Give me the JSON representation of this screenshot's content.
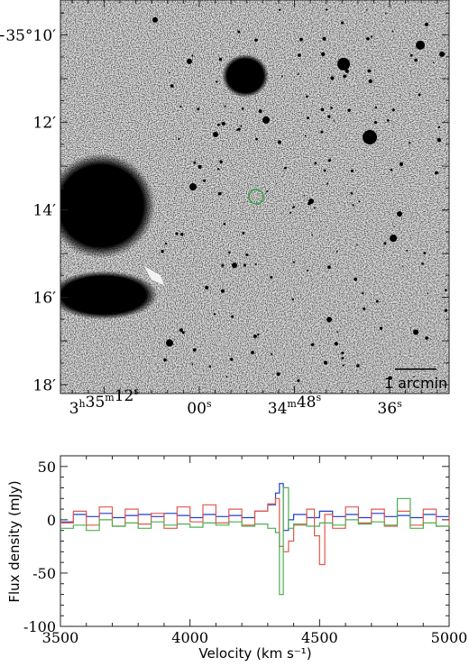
{
  "image_panel": {
    "dec_labels": [
      {
        "text": "−35°10′",
        "dec": 10
      },
      {
        "text": "12′",
        "dec": 12
      },
      {
        "text": "14′",
        "dec": 14
      },
      {
        "text": "16′",
        "dec": 16
      },
      {
        "text": "18′",
        "dec": 18
      }
    ],
    "ra_labels": [
      {
        "parts": [
          [
            "3",
            ""
          ],
          [
            "h",
            "sup"
          ],
          [
            "35",
            ""
          ],
          [
            "m",
            "sup"
          ],
          [
            "12",
            ""
          ],
          [
            "s",
            "sup"
          ]
        ],
        "ra": 12
      },
      {
        "parts": [
          [
            "00",
            ""
          ],
          [
            "s",
            "sup"
          ]
        ],
        "ra": 0
      },
      {
        "parts": [
          [
            "34",
            ""
          ],
          [
            "m",
            "sup"
          ],
          [
            "48",
            ""
          ],
          [
            "s",
            "sup"
          ]
        ],
        "ra": -12
      },
      {
        "parts": [
          [
            "36",
            ""
          ],
          [
            "s",
            "sup"
          ]
        ],
        "ra": -24
      }
    ],
    "scalebar_label": "1 arcmin",
    "marker_color": "#2e9e3a"
  },
  "chart_data": {
    "type": "line",
    "style": "step",
    "xlabel": "Velocity (km s⁻¹)",
    "ylabel": "Flux density (mJy)",
    "xlim": [
      3500,
      5000
    ],
    "ylim": [
      -100,
      60
    ],
    "xticks": [
      3500,
      4000,
      4500,
      5000
    ],
    "yticks": [
      50,
      0,
      -50,
      -100
    ],
    "series": [
      {
        "color": "#1f3fcc",
        "x": [
          3500,
          3550,
          3600,
          3650,
          3700,
          3750,
          3800,
          3850,
          3900,
          3950,
          4000,
          4050,
          4100,
          4150,
          4200,
          4250,
          4300,
          4330,
          4345,
          4360,
          4380,
          4400,
          4450,
          4500,
          4550,
          4600,
          4650,
          4700,
          4750,
          4800,
          4850,
          4900,
          4950,
          5000
        ],
        "y": [
          -2,
          5,
          3,
          6,
          2,
          4,
          5,
          3,
          6,
          4,
          2,
          5,
          3,
          4,
          2,
          8,
          14,
          25,
          34,
          -10,
          0,
          5,
          2,
          8,
          3,
          5,
          2,
          6,
          3,
          4,
          2,
          5,
          3,
          2
        ]
      },
      {
        "color": "#e0584a",
        "x": [
          3500,
          3550,
          3600,
          3650,
          3700,
          3750,
          3800,
          3850,
          3900,
          3950,
          4000,
          4050,
          4100,
          4150,
          4200,
          4250,
          4300,
          4330,
          4345,
          4360,
          4380,
          4400,
          4450,
          4480,
          4500,
          4520,
          4550,
          4600,
          4650,
          4700,
          4750,
          4800,
          4850,
          4900,
          4950,
          5000
        ],
        "y": [
          -3,
          8,
          -5,
          12,
          -6,
          10,
          -4,
          6,
          -8,
          12,
          -2,
          14,
          -3,
          10,
          -5,
          8,
          15,
          20,
          -25,
          -30,
          -20,
          -5,
          10,
          -15,
          -42,
          5,
          -8,
          12,
          -3,
          10,
          -6,
          8,
          -5,
          10,
          -6,
          4
        ]
      },
      {
        "color": "#4caf50",
        "x": [
          3500,
          3550,
          3600,
          3650,
          3700,
          3750,
          3800,
          3850,
          3900,
          3950,
          4000,
          4050,
          4100,
          4150,
          4200,
          4250,
          4300,
          4330,
          4345,
          4360,
          4380,
          4400,
          4450,
          4500,
          4550,
          4600,
          4650,
          4700,
          4750,
          4800,
          4850,
          4900,
          4950,
          5000
        ],
        "y": [
          -8,
          -5,
          -10,
          0,
          -6,
          -3,
          -8,
          -2,
          -5,
          -4,
          -7,
          -3,
          -5,
          -2,
          -6,
          -4,
          -8,
          -12,
          -70,
          30,
          -8,
          -4,
          -6,
          -3,
          -5,
          0,
          -4,
          -2,
          -5,
          20,
          -8,
          -3,
          -6,
          -4
        ]
      }
    ]
  }
}
